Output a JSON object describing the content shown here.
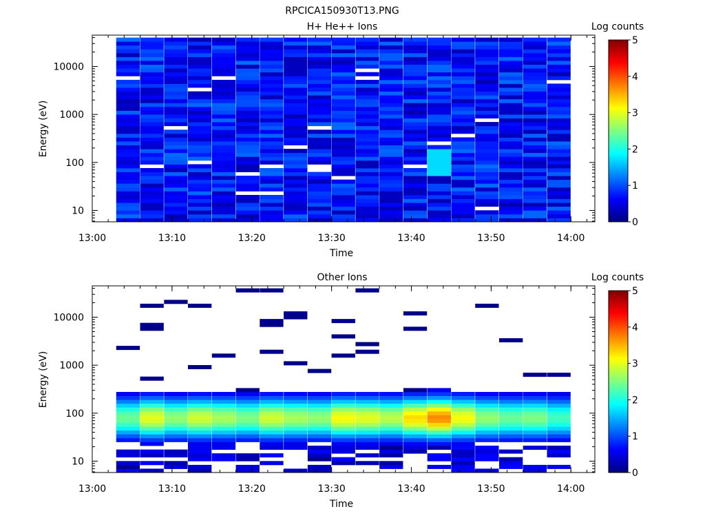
{
  "figure": {
    "title": "RPCICA150930T13.PNG"
  },
  "colorscale": {
    "stops": [
      "#000080",
      "#0000ff",
      "#0080ff",
      "#00ffff",
      "#80ff80",
      "#ffff00",
      "#ff8000",
      "#ff0000",
      "#800000"
    ]
  },
  "chart_data": [
    {
      "type": "heatmap",
      "title": "H+ He++ Ions",
      "xlabel": "Time",
      "ylabel": "Energy (eV)",
      "y_scale": "log",
      "xticks": [
        "13:00",
        "13:10",
        "13:20",
        "13:30",
        "13:40",
        "13:50",
        "14:00"
      ],
      "yticks": [
        "10",
        "100",
        "1000",
        "10000"
      ],
      "xlim": [
        "13:00",
        "14:03"
      ],
      "ylim": [
        5.8,
        45000
      ],
      "time_bins": [
        "13:03",
        "13:06",
        "13:09",
        "13:12",
        "13:15",
        "13:18",
        "13:21",
        "13:24",
        "13:27",
        "13:30",
        "13:33",
        "13:36",
        "13:39",
        "13:42",
        "13:45",
        "13:48",
        "13:51",
        "13:54",
        "13:57"
      ],
      "energy_range_eV": [
        5.8,
        40000
      ],
      "typical_log_counts": 0.7,
      "max_log_counts": 1.7,
      "colorbar": {
        "label": "Log counts",
        "ticks": [
          "0",
          "1",
          "2",
          "3",
          "4",
          "5"
        ],
        "range": [
          0,
          5
        ]
      }
    },
    {
      "type": "heatmap",
      "title": "Other Ions",
      "xlabel": "Time",
      "ylabel": "Energy (eV)",
      "y_scale": "log",
      "xticks": [
        "13:00",
        "13:10",
        "13:20",
        "13:30",
        "13:40",
        "13:50",
        "14:00"
      ],
      "yticks": [
        "10",
        "100",
        "1000",
        "10000"
      ],
      "xlim": [
        "13:00",
        "14:03"
      ],
      "ylim": [
        5.8,
        45000
      ],
      "time_bins": [
        "13:03",
        "13:06",
        "13:09",
        "13:12",
        "13:15",
        "13:18",
        "13:21",
        "13:24",
        "13:27",
        "13:30",
        "13:33",
        "13:36",
        "13:39",
        "13:42",
        "13:45",
        "13:48",
        "13:51",
        "13:54",
        "13:57"
      ],
      "peak_energy_eV": 80,
      "peak_log_counts": [
        2.4,
        3.0,
        2.6,
        2.9,
        2.7,
        2.5,
        2.9,
        2.7,
        2.6,
        3.1,
        3.0,
        2.8,
        3.3,
        3.7,
        3.1,
        2.6,
        2.4,
        2.5,
        2.2
      ],
      "colorbar": {
        "label": "Log counts",
        "ticks": [
          "0",
          "1",
          "2",
          "3",
          "4",
          "5"
        ],
        "range": [
          0,
          5
        ]
      }
    }
  ]
}
